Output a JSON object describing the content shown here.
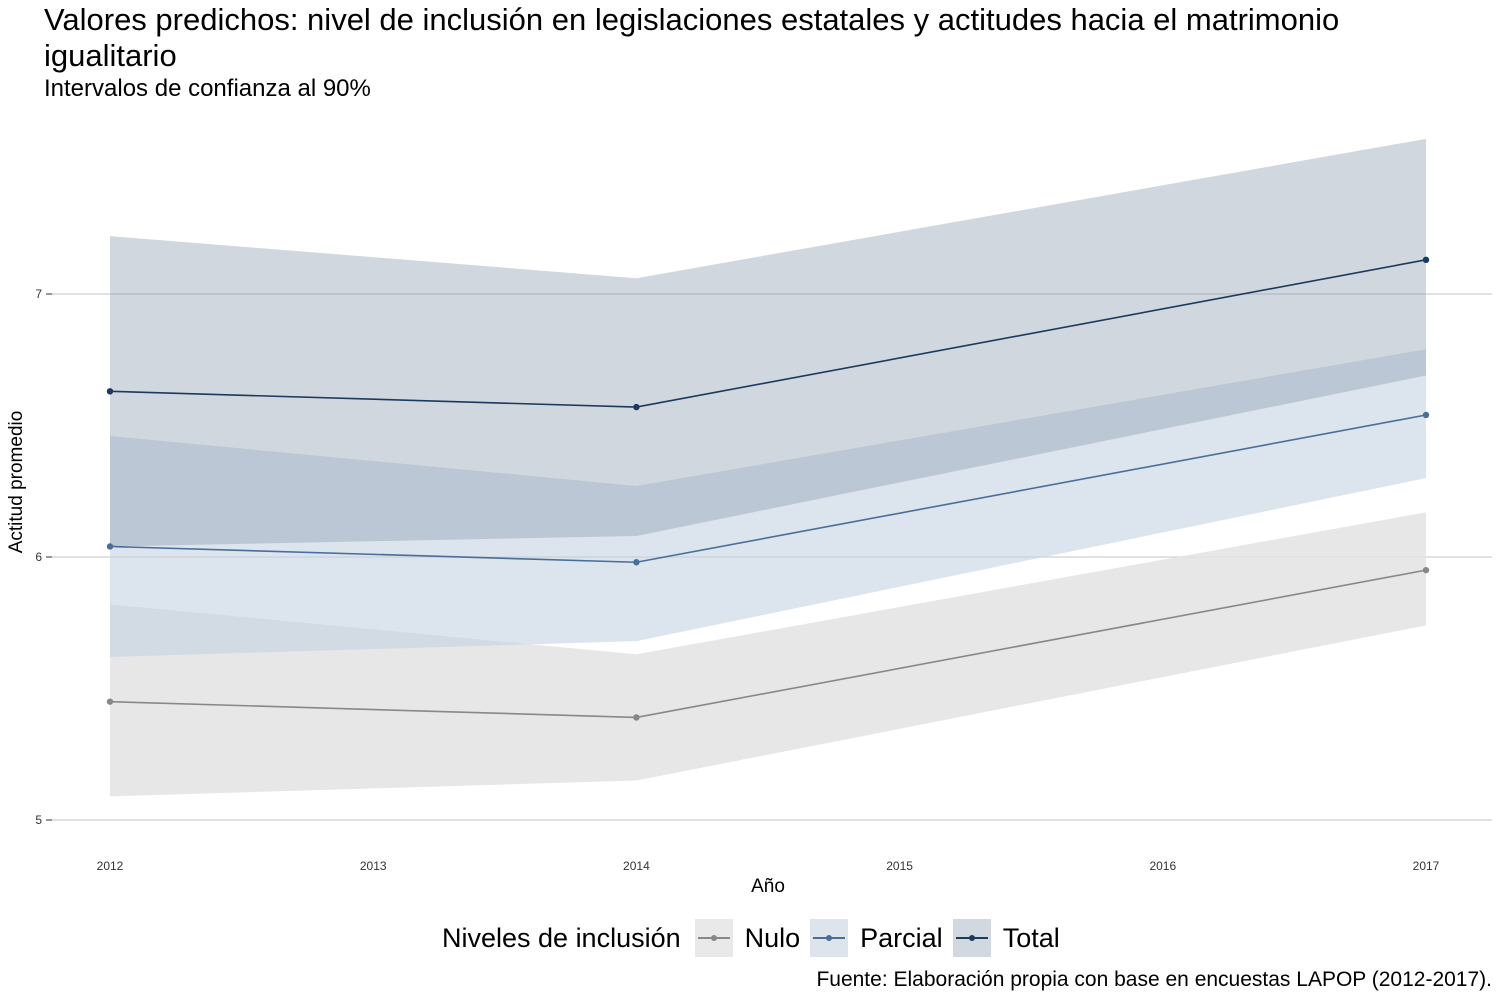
{
  "title": "Valores predichos: nivel de inclusión en legislaciones estatales y actitudes hacia el matrimonio igualitario",
  "subtitle": "Intervalos de confianza al 90%",
  "caption": "Fuente: Elaboración propia con base en encuestas LAPOP (2012-2017).",
  "legend": {
    "title": "Niveles de inclusión",
    "items": [
      {
        "label": "Nulo",
        "line_color": "#888888",
        "fill_color": "#e9e9e9"
      },
      {
        "label": "Parcial",
        "line_color": "#4a6e99",
        "fill_color": "#dde4ec"
      },
      {
        "label": "Total",
        "line_color": "#1b3a5e",
        "fill_color": "#d2d8e0"
      }
    ]
  },
  "chart_data": {
    "type": "line",
    "xlabel": "Año",
    "ylabel": "Actitud promedio",
    "x": [
      2012,
      2014,
      2017
    ],
    "x_ticks": [
      "2012",
      "2013",
      "2014",
      "2015",
      "2016",
      "2017"
    ],
    "y_ticks": [
      "5",
      "6",
      "7"
    ],
    "xlim": [
      2012,
      2017
    ],
    "ylim": [
      5,
      7
    ],
    "grid": "horizontal major only",
    "legend_position": "bottom",
    "series": [
      {
        "name": "Nulo",
        "values": [
          5.45,
          5.39,
          5.95
        ],
        "lower": [
          5.09,
          5.15,
          5.74
        ],
        "upper": [
          5.82,
          5.63,
          6.17
        ],
        "line_color": "#888888",
        "fill_color": "#e3e3e3",
        "fill_opacity": 0.85
      },
      {
        "name": "Parcial",
        "values": [
          6.04,
          5.98,
          6.54
        ],
        "lower": [
          5.62,
          5.68,
          6.3
        ],
        "upper": [
          6.46,
          6.27,
          6.79
        ],
        "line_color": "#4a6e99",
        "fill_color": "#c5d2e1",
        "fill_opacity": 0.6
      },
      {
        "name": "Total",
        "values": [
          6.63,
          6.57,
          7.13
        ],
        "lower": [
          6.04,
          6.08,
          6.69
        ],
        "upper": [
          7.22,
          7.06,
          7.59
        ],
        "line_color": "#1b3a5e",
        "fill_color": "#8a9bb0",
        "fill_opacity": 0.4
      }
    ]
  }
}
